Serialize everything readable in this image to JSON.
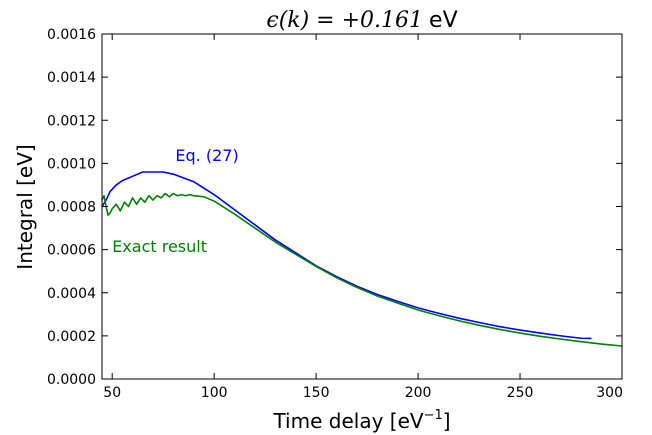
{
  "chart_data": {
    "type": "line",
    "title": {
      "math": "ϵ(k) = +0.161",
      "unit": "eV"
    },
    "xlabel": {
      "text": "Time delay [eV",
      "sup": "−1",
      "close": "]"
    },
    "ylabel": "Integral [eV]",
    "xlim": [
      45,
      300
    ],
    "ylim": [
      0,
      0.0016
    ],
    "xticks": [
      {
        "value": 50,
        "label": "50"
      },
      {
        "value": 100,
        "label": "100"
      },
      {
        "value": 150,
        "label": "150"
      },
      {
        "value": 200,
        "label": "200"
      },
      {
        "value": 250,
        "label": "250"
      },
      {
        "value": 300,
        "label": "300"
      }
    ],
    "yticks": [
      {
        "value": 0,
        "label": "0.0000"
      },
      {
        "value": 0.0002,
        "label": "0.0002"
      },
      {
        "value": 0.0004,
        "label": "0.0004"
      },
      {
        "value": 0.0006,
        "label": "0.0006"
      },
      {
        "value": 0.0008,
        "label": "0.0008"
      },
      {
        "value": 0.001,
        "label": "0.0010"
      },
      {
        "value": 0.0012,
        "label": "0.0012"
      },
      {
        "value": 0.0014,
        "label": "0.0014"
      },
      {
        "value": 0.0016,
        "label": "0.0016"
      }
    ],
    "grid": false,
    "series": [
      {
        "name": "Eq. (27)",
        "color": "#0000ff",
        "label_anchor": {
          "x": 81,
          "y": 0.00101
        },
        "x": [
          45,
          47,
          49,
          52,
          55,
          60,
          65,
          70,
          75,
          80,
          90,
          100,
          110,
          120,
          130,
          140,
          150,
          160,
          170,
          180,
          190,
          200,
          210,
          220,
          230,
          240,
          250,
          260,
          270,
          280,
          285
        ],
        "y": [
          0.0008,
          0.00083,
          0.00087,
          0.0009,
          0.00092,
          0.00094,
          0.00096,
          0.00096,
          0.00096,
          0.00095,
          0.000915,
          0.000855,
          0.000785,
          0.000715,
          0.000645,
          0.000585,
          0.000525,
          0.000475,
          0.00043,
          0.000392,
          0.00036,
          0.00033,
          0.000305,
          0.000282,
          0.000262,
          0.000243,
          0.000227,
          0.000213,
          0.0002,
          0.000189,
          0.000188
        ]
      },
      {
        "name": "Exact result",
        "color": "#008000",
        "label_anchor": {
          "x": 50,
          "y": 0.00059
        },
        "x": [
          45,
          46,
          47,
          48,
          49,
          50,
          52,
          54,
          56,
          58,
          60,
          62,
          64,
          66,
          68,
          70,
          72,
          74,
          76,
          78,
          80,
          82,
          84,
          86,
          88,
          90,
          95,
          100,
          110,
          120,
          130,
          140,
          150,
          160,
          170,
          180,
          190,
          200,
          210,
          220,
          230,
          240,
          250,
          260,
          270,
          280,
          290,
          300
        ],
        "y": [
          0.00083,
          0.00085,
          0.0008,
          0.00076,
          0.00077,
          0.00079,
          0.00081,
          0.00078,
          0.00082,
          0.0008,
          0.00084,
          0.00081,
          0.00084,
          0.00082,
          0.00085,
          0.00083,
          0.00085,
          0.00084,
          0.00086,
          0.000845,
          0.00086,
          0.00085,
          0.000855,
          0.00085,
          0.000855,
          0.00085,
          0.000845,
          0.000825,
          0.000765,
          0.0007,
          0.000635,
          0.000578,
          0.000522,
          0.00047,
          0.000425,
          0.000385,
          0.000352,
          0.00032,
          0.000294,
          0.00027,
          0.000249,
          0.00023,
          0.000213,
          0.000198,
          0.000185,
          0.000173,
          0.000162,
          0.000153
        ]
      }
    ]
  }
}
